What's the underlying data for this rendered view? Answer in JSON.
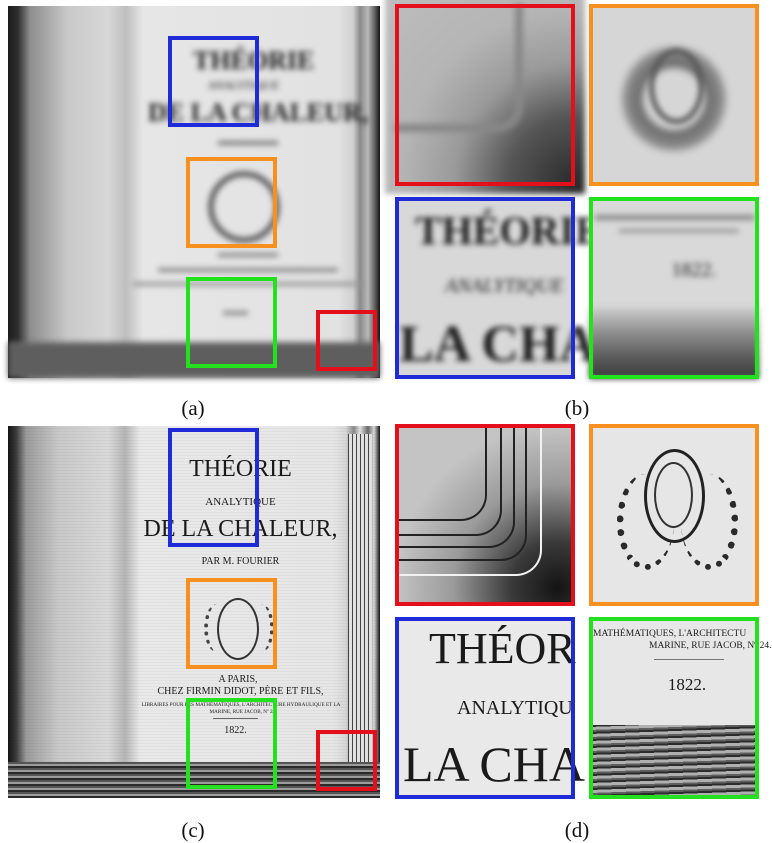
{
  "captions": {
    "a": "(a)",
    "b": "(b)",
    "c": "(c)",
    "d": "(d)"
  },
  "colors": {
    "red": "#e3101b",
    "orange": "#f7901e",
    "blue": "#1f2bd6",
    "green": "#22e21d"
  },
  "book": {
    "title_line1": "THÉORIE",
    "title_line2": "ANALYTIQUE",
    "title_line3": "DE LA CHALEUR,",
    "author": "PAR M. FOURIER",
    "place": "A PARIS,",
    "publisher": "CHEZ FIRMIN DIDOT, PÈRE ET FILS,",
    "imprint_line1": "LIBRAIRES POUR LES MATHÉMATIQUES, L'ARCHITECTURE HYDRAULIQUE ET LA",
    "imprint_line2": "MARINE, RUE JACOB, Nº 24.",
    "year": "1822."
  },
  "crops_sharp": {
    "blue_line1": "THÉOR",
    "blue_line2": "ANALYTIQU",
    "blue_line3": "LA CHA",
    "green_line1": "MATHÉMATIQUES, L'ARCHITECTU",
    "green_line2": "MARINE, RUE JACOB, Nº 24.",
    "green_line3": "1822."
  },
  "crops_blurred": {
    "blue_line1": "THÉORIE",
    "blue_line2": "ANALYTIQUE",
    "blue_line3": "LA CHA",
    "green_line2": "1822."
  },
  "blurred_main": {
    "title_line1": "THÉORIE",
    "title_line2": "ANALYTIQUE",
    "title_line3": "DE LA CHALEUR,"
  }
}
